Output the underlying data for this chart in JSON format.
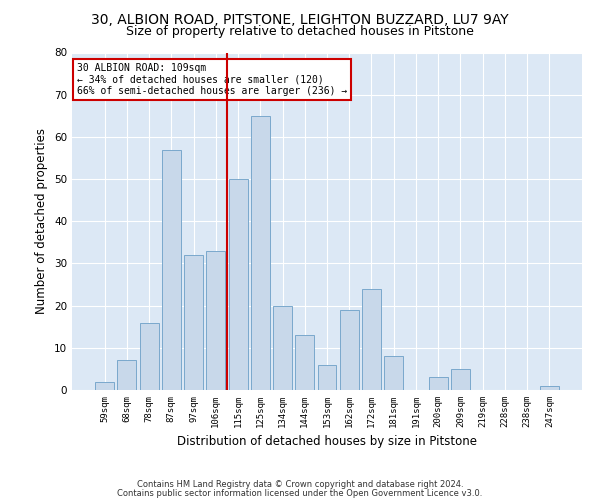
{
  "title1": "30, ALBION ROAD, PITSTONE, LEIGHTON BUZZARD, LU7 9AY",
  "title2": "Size of property relative to detached houses in Pitstone",
  "xlabel": "Distribution of detached houses by size in Pitstone",
  "ylabel": "Number of detached properties",
  "bin_labels": [
    "59sqm",
    "68sqm",
    "78sqm",
    "87sqm",
    "97sqm",
    "106sqm",
    "115sqm",
    "125sqm",
    "134sqm",
    "144sqm",
    "153sqm",
    "162sqm",
    "172sqm",
    "181sqm",
    "191sqm",
    "200sqm",
    "209sqm",
    "219sqm",
    "228sqm",
    "238sqm",
    "247sqm"
  ],
  "values": [
    2,
    7,
    16,
    57,
    32,
    33,
    50,
    65,
    20,
    13,
    6,
    19,
    24,
    8,
    0,
    3,
    5,
    0,
    0,
    0,
    1
  ],
  "bar_color": "#c8d8ea",
  "bar_edge_color": "#7aa8cc",
  "vline_x": 5.5,
  "vline_color": "#cc0000",
  "annotation_line1": "30 ALBION ROAD: 109sqm",
  "annotation_line2": "← 34% of detached houses are smaller (120)",
  "annotation_line3": "66% of semi-detached houses are larger (236) →",
  "annotation_box_color": "#cc0000",
  "ylim": [
    0,
    80
  ],
  "yticks": [
    0,
    10,
    20,
    30,
    40,
    50,
    60,
    70,
    80
  ],
  "footer1": "Contains HM Land Registry data © Crown copyright and database right 2024.",
  "footer2": "Contains public sector information licensed under the Open Government Licence v3.0.",
  "plot_bg_color": "#dce8f5",
  "title1_fontsize": 10,
  "title2_fontsize": 9,
  "xlabel_fontsize": 8.5,
  "ylabel_fontsize": 8.5,
  "footer_fontsize": 6.0
}
